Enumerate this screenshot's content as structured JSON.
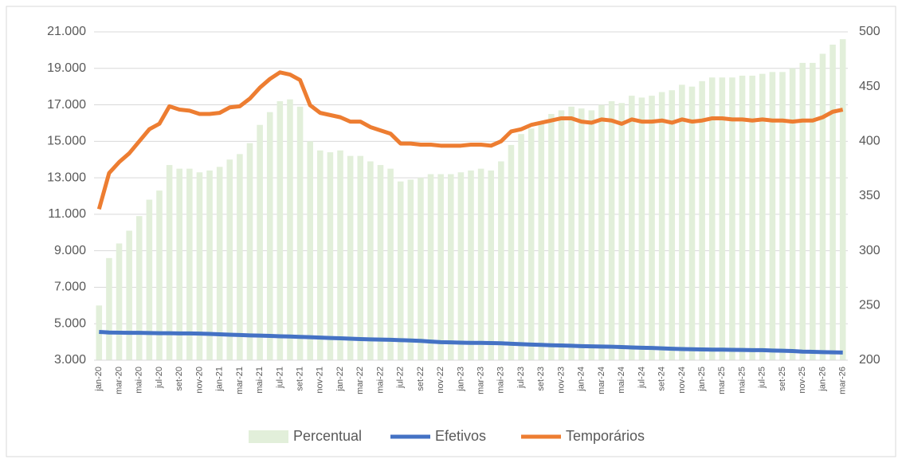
{
  "chart_data": {
    "type": "combo",
    "categories": [
      "jan-20",
      null,
      "mar-20",
      null,
      "mai-20",
      null,
      "jul-20",
      null,
      "set-20",
      null,
      "nov-20",
      null,
      "jan-21",
      null,
      "mar-21",
      null,
      "mai-21",
      null,
      "jul-21",
      null,
      "set-21",
      null,
      "nov-21",
      null,
      "jan-22",
      null,
      "mar-22",
      null,
      "mai-22",
      null,
      "jul-22",
      null,
      "set-22",
      null,
      "nov-22",
      null,
      "jan-23",
      null,
      "mar-23",
      null,
      "mai-23",
      null,
      "jul-23",
      null,
      "set-23",
      null,
      "nov-23",
      null,
      "jan-24",
      null,
      "mar-24",
      null,
      "mai-24",
      null,
      "jul-24",
      null,
      "set-24",
      null,
      "nov-24",
      null,
      "jan-25",
      null,
      "mar-25",
      null,
      "mai-25",
      null,
      "jul-25",
      null,
      "set-25",
      null,
      "nov-25",
      null,
      "jan-26",
      null,
      "mar-26"
    ],
    "series": [
      {
        "name": "Percentual",
        "type": "bar",
        "color": "#e2efda",
        "values": [
          6000,
          8600,
          9400,
          10100,
          10900,
          11800,
          12300,
          13700,
          13500,
          13500,
          13300,
          13400,
          13600,
          14000,
          14300,
          14900,
          15900,
          16600,
          17200,
          17300,
          16900,
          15000,
          14500,
          14400,
          14500,
          14200,
          14200,
          13900,
          13700,
          13500,
          12800,
          12900,
          13000,
          13200,
          13200,
          13200,
          13300,
          13400,
          13500,
          13400,
          13900,
          14800,
          15400,
          15700,
          16100,
          16500,
          16700,
          16900,
          16800,
          16700,
          17000,
          17200,
          17100,
          17500,
          17400,
          17500,
          17700,
          17800,
          18100,
          18000,
          18300,
          18500,
          18500,
          18500,
          18600,
          18600,
          18700,
          18800,
          18800,
          19000,
          19300,
          19300,
          19800,
          20300,
          20600
        ]
      },
      {
        "name": "Efetivos",
        "type": "line",
        "color": "#4472c4",
        "values": [
          4550,
          4520,
          4510,
          4500,
          4500,
          4490,
          4480,
          4480,
          4470,
          4470,
          4460,
          4440,
          4420,
          4400,
          4380,
          4360,
          4350,
          4330,
          4310,
          4300,
          4280,
          4260,
          4240,
          4220,
          4200,
          4180,
          4160,
          4140,
          4130,
          4120,
          4100,
          4080,
          4060,
          4020,
          3990,
          3980,
          3960,
          3950,
          3950,
          3940,
          3930,
          3900,
          3880,
          3860,
          3840,
          3820,
          3810,
          3790,
          3770,
          3760,
          3750,
          3740,
          3720,
          3700,
          3680,
          3670,
          3650,
          3630,
          3610,
          3600,
          3590,
          3580,
          3580,
          3570,
          3560,
          3550,
          3550,
          3530,
          3520,
          3500,
          3470,
          3460,
          3440,
          3430,
          3420
        ]
      },
      {
        "name": "Temporários",
        "type": "line",
        "color": "#ed7d31",
        "axis": "y2",
        "values": [
          338,
          371,
          381,
          389,
          400,
          411,
          416,
          432,
          429,
          428,
          425,
          425,
          426,
          431,
          432,
          439,
          449,
          457,
          463,
          461,
          456,
          433,
          426,
          424,
          422,
          418,
          418,
          413,
          410,
          407,
          398,
          398,
          397,
          397,
          396,
          396,
          396,
          397,
          397,
          396,
          400,
          409,
          411,
          415,
          417,
          419,
          421,
          421,
          418,
          417,
          420,
          419,
          416,
          420,
          418,
          418,
          419,
          417,
          420,
          418,
          419,
          421,
          421,
          420,
          420,
          419,
          420,
          419,
          419,
          418,
          419,
          419,
          422,
          427,
          429
        ]
      }
    ],
    "ylim": [
      3000,
      21000
    ],
    "yticks": [
      {
        "value": 3000,
        "label": "3.000"
      },
      {
        "value": 5000,
        "label": "5.000"
      },
      {
        "value": 7000,
        "label": "7.000"
      },
      {
        "value": 9000,
        "label": "9.000"
      },
      {
        "value": 11000,
        "label": "11.000"
      },
      {
        "value": 13000,
        "label": "13.000"
      },
      {
        "value": 15000,
        "label": "15.000"
      },
      {
        "value": 17000,
        "label": "17.000"
      },
      {
        "value": 19000,
        "label": "19.000"
      },
      {
        "value": 21000,
        "label": "21.000"
      }
    ],
    "y2lim": [
      200,
      500
    ],
    "y2ticks": [
      200,
      250,
      300,
      350,
      400,
      450,
      500
    ],
    "grid": true,
    "legend": "bottom"
  }
}
